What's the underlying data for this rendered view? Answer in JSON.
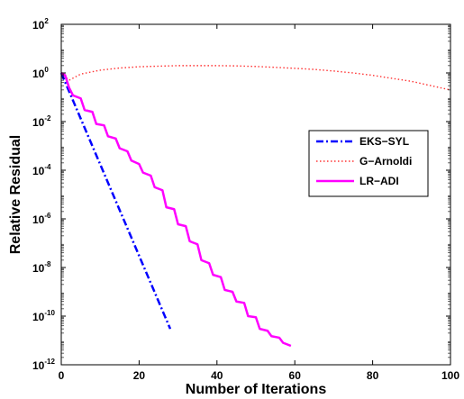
{
  "chart_data": {
    "type": "line",
    "title": "",
    "xlabel": "Number of Iterations",
    "ylabel": "Relative Residual",
    "xlim": [
      0,
      100
    ],
    "ylim_log10": [
      -12,
      2
    ],
    "yscale": "log",
    "xticks": [
      0,
      20,
      40,
      60,
      80,
      100
    ],
    "yticks": [
      {
        "base": "10",
        "exp": "2",
        "value": 2
      },
      {
        "base": "10",
        "exp": "0",
        "value": 0
      },
      {
        "base": "10",
        "exp": "-2",
        "value": -2
      },
      {
        "base": "10",
        "exp": "-4",
        "value": -4
      },
      {
        "base": "10",
        "exp": "-6",
        "value": -6
      },
      {
        "base": "10",
        "exp": "-8",
        "value": -8
      },
      {
        "base": "10",
        "exp": "-10",
        "value": -10
      },
      {
        "base": "10",
        "exp": "-12",
        "value": -12
      }
    ],
    "grid": false,
    "legend_position": "right",
    "series": [
      {
        "name": "EKS−SYL",
        "color": "#0000ff",
        "style": "dashdot",
        "x": [
          0,
          28
        ],
        "y": [
          1.0,
          3e-11
        ]
      },
      {
        "name": "G−Arnoldi",
        "color": "#ff3333",
        "style": "dotted",
        "x": [
          0,
          2,
          5,
          10,
          15,
          20,
          25,
          30,
          35,
          40,
          45,
          50,
          55,
          60,
          65,
          70,
          75,
          80,
          85,
          90,
          95,
          100
        ],
        "y": [
          1.0,
          0.5,
          0.9,
          1.3,
          1.6,
          1.8,
          1.9,
          2.0,
          2.0,
          2.0,
          1.95,
          1.85,
          1.7,
          1.55,
          1.4,
          1.2,
          1.0,
          0.8,
          0.6,
          0.45,
          0.3,
          0.2
        ]
      },
      {
        "name": "LR−ADI",
        "color": "#ff00ff",
        "style": "solid",
        "x": [
          0,
          1,
          2,
          3,
          5,
          6,
          8,
          9,
          11,
          12,
          14,
          15,
          17,
          18,
          20,
          21,
          23,
          24,
          26,
          27,
          29,
          30,
          32,
          33,
          35,
          36,
          38,
          39,
          41,
          42,
          44,
          45,
          47,
          48,
          50,
          51,
          53,
          54,
          56,
          57,
          59
        ],
        "y": [
          1.0,
          0.8,
          0.25,
          0.12,
          0.09,
          0.03,
          0.025,
          0.008,
          0.007,
          0.0025,
          0.002,
          0.0008,
          0.0006,
          0.00025,
          0.00018,
          8e-05,
          6e-05,
          2e-05,
          1.5e-05,
          3e-06,
          2.5e-06,
          6e-07,
          5e-07,
          1.2e-07,
          9e-08,
          2e-08,
          1.5e-08,
          5e-09,
          4e-09,
          1.2e-09,
          1e-09,
          4e-10,
          3.5e-10,
          1e-10,
          9e-11,
          3e-11,
          2.5e-11,
          1.5e-11,
          1.3e-11,
          8e-12,
          6e-12
        ]
      }
    ]
  }
}
